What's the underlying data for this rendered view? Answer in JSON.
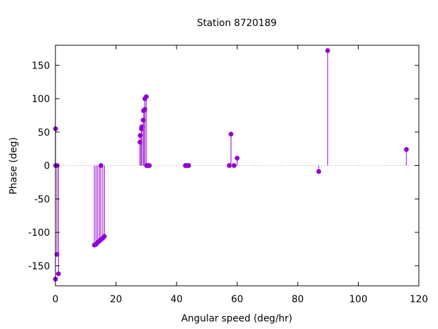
{
  "chart_data": {
    "type": "scatter",
    "style": "impulses-with-points",
    "title": "Station 8720189",
    "xlabel": "Angular speed (deg/hr)",
    "ylabel": "Phase (deg)",
    "xlim": [
      0,
      120
    ],
    "ylim": [
      -180,
      180
    ],
    "xticks": [
      0,
      20,
      40,
      60,
      80,
      100,
      120
    ],
    "yticks": [
      -150,
      -100,
      -50,
      0,
      50,
      100,
      150
    ],
    "zero_line": "dotted",
    "grid": false,
    "color": "#9400d3",
    "series": [
      {
        "x": [
          0.0,
          0.04,
          0.08,
          0.5,
          0.55,
          1.0,
          12.85,
          13.4,
          13.94,
          14.5,
          14.96,
          15.04,
          15.59,
          16.14,
          27.9,
          28.0,
          28.4,
          28.5,
          28.98,
          29.1,
          29.5,
          29.53,
          30.0,
          30.08,
          30.5,
          31.0,
          42.9,
          43.0,
          43.5,
          44.0,
          57.4,
          57.97,
          58.98,
          60.0,
          86.95,
          89.9,
          115.9
        ],
        "y": [
          -170,
          55,
          0,
          -133,
          0,
          -162,
          -119,
          -118,
          -115,
          -113,
          -111,
          0,
          -109,
          -106,
          35,
          45,
          55,
          58,
          68,
          82,
          84,
          100,
          103,
          0,
          0,
          0,
          0,
          0,
          0,
          0,
          0,
          47,
          0,
          11,
          -9,
          172,
          24
        ]
      }
    ]
  }
}
